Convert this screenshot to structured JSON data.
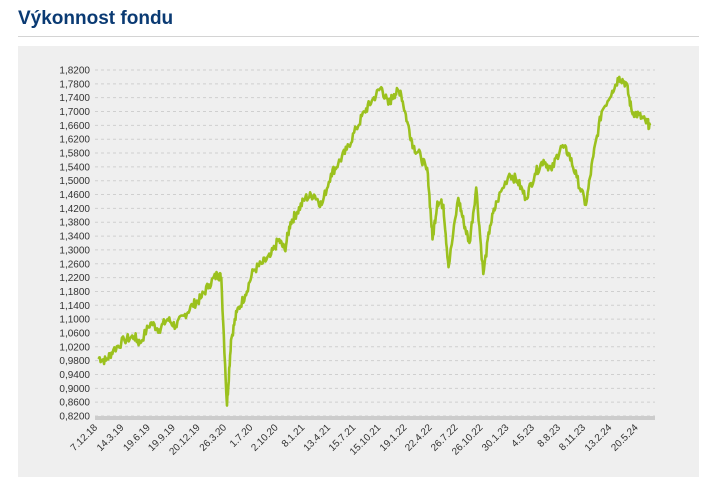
{
  "header": {
    "title": "Výkonnost fondu"
  },
  "colors": {
    "title": "#0a3a73",
    "line": "#9bc11e",
    "panel": "#efefef",
    "grid": "#cfcfcf"
  },
  "chart_data": {
    "type": "line",
    "title": "",
    "xlabel": "",
    "ylabel": "",
    "ylim": [
      0.82,
      1.82
    ],
    "grid": "horizontal dashed",
    "y_ticks": [
      "1,8200",
      "1,7800",
      "1,7400",
      "1,7000",
      "1,6600",
      "1,6200",
      "1,5800",
      "1,5400",
      "1,5000",
      "1,4600",
      "1,4200",
      "1,3800",
      "1,3400",
      "1,3000",
      "1,2600",
      "1,2200",
      "1,1800",
      "1,1400",
      "1,1000",
      "1,0600",
      "1,0200",
      "0,9800",
      "0,9400",
      "0,9000",
      "0,8600",
      "0,8200"
    ],
    "x_ticks": [
      "7.12.18",
      "14.3.19",
      "19.6.19",
      "19.9.19",
      "20.12.19",
      "26.3.20",
      "1.7.20",
      "2.10.20",
      "8.1.21",
      "13.4.21",
      "15.7.21",
      "15.10.21",
      "19.1.22",
      "22.4.22",
      "26.7.22",
      "26.10.22",
      "30.1.23",
      "4.5.23",
      "8.8.23",
      "8.11.23",
      "13.2.24",
      "20.5.24"
    ],
    "series": [
      {
        "x": [
          "2018-12-07",
          "2019-01-05",
          "2019-02-01",
          "2019-03-14",
          "2019-04-20",
          "2019-05-10",
          "2019-06-19",
          "2019-07-20",
          "2019-08-20",
          "2019-09-19",
          "2019-10-20",
          "2019-11-20",
          "2019-12-20",
          "2020-01-20",
          "2020-02-20",
          "2020-03-05",
          "2020-03-26",
          "2020-04-10",
          "2020-05-01",
          "2020-06-01",
          "2020-07-01",
          "2020-08-01",
          "2020-09-01",
          "2020-10-02",
          "2020-10-25",
          "2020-11-15",
          "2020-12-10",
          "2021-01-08",
          "2021-02-10",
          "2021-03-10",
          "2021-04-13",
          "2021-05-10",
          "2021-06-10",
          "2021-07-15",
          "2021-08-15",
          "2021-09-10",
          "2021-10-15",
          "2021-11-10",
          "2021-12-01",
          "2021-12-25",
          "2022-01-19",
          "2022-02-10",
          "2022-03-10",
          "2022-04-05",
          "2022-04-22",
          "2022-05-10",
          "2022-06-01",
          "2022-06-20",
          "2022-07-26",
          "2022-08-15",
          "2022-09-05",
          "2022-09-30",
          "2022-10-26",
          "2022-11-20",
          "2022-12-15",
          "2023-01-30",
          "2023-03-01",
          "2023-04-01",
          "2023-05-04",
          "2023-06-05",
          "2023-07-05",
          "2023-08-08",
          "2023-09-05",
          "2023-10-05",
          "2023-11-08",
          "2023-12-05",
          "2024-01-05",
          "2024-02-13",
          "2024-03-10",
          "2024-04-05",
          "2024-04-25",
          "2024-05-20",
          "2024-06-15",
          "2024-07-01"
        ],
        "y": [
          0.99,
          0.98,
          1.01,
          1.04,
          1.05,
          1.03,
          1.09,
          1.07,
          1.1,
          1.08,
          1.11,
          1.14,
          1.16,
          1.2,
          1.23,
          1.22,
          0.85,
          1.04,
          1.12,
          1.17,
          1.24,
          1.26,
          1.28,
          1.33,
          1.3,
          1.38,
          1.41,
          1.45,
          1.46,
          1.43,
          1.52,
          1.55,
          1.59,
          1.65,
          1.7,
          1.73,
          1.77,
          1.72,
          1.75,
          1.76,
          1.67,
          1.6,
          1.57,
          1.52,
          1.33,
          1.44,
          1.43,
          1.25,
          1.45,
          1.38,
          1.32,
          1.48,
          1.23,
          1.37,
          1.44,
          1.52,
          1.5,
          1.45,
          1.52,
          1.56,
          1.53,
          1.6,
          1.58,
          1.51,
          1.43,
          1.57,
          1.7,
          1.76,
          1.8,
          1.78,
          1.7,
          1.69,
          1.67,
          1.66
        ]
      }
    ]
  }
}
